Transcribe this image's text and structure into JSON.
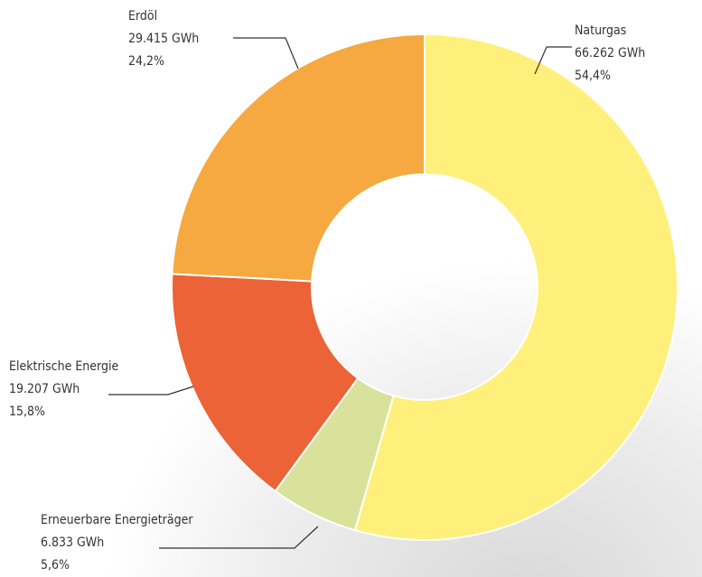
{
  "chart_data": {
    "type": "donut",
    "categories": [
      "Naturgas",
      "Erneuerbare Energieträger",
      "Elektrische Energie",
      "Erdöl"
    ],
    "values": [
      66262,
      6833,
      19207,
      29415
    ],
    "value_labels": [
      "66.262 GWh",
      "6.833 GWh",
      "19.207 GWh",
      "29.415 GWh"
    ],
    "percents": [
      54.4,
      5.6,
      15.8,
      24.2
    ],
    "percent_labels": [
      "54,4%",
      "5,6%",
      "15,8%",
      "24,2%"
    ],
    "colors": [
      "#fef07a",
      "#d9e29a",
      "#eb6336",
      "#f5a940"
    ]
  }
}
